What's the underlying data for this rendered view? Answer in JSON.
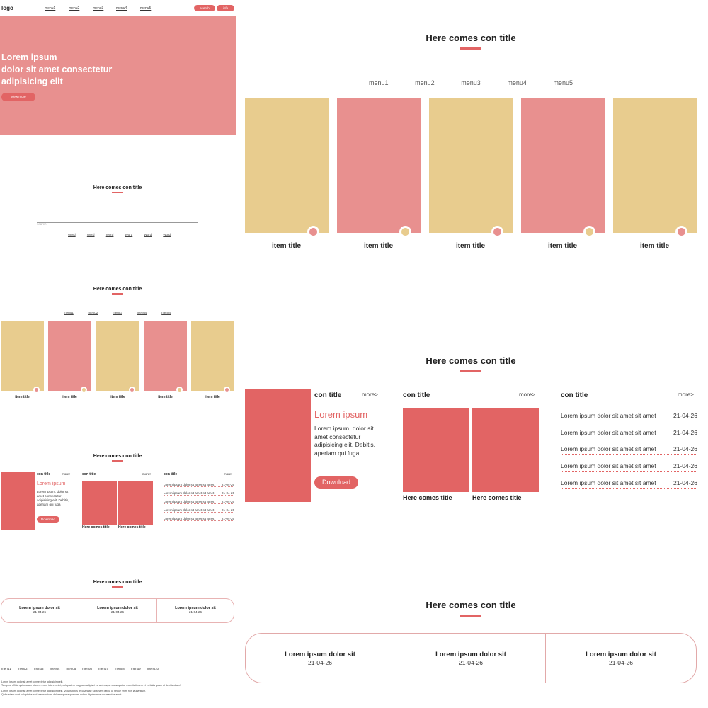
{
  "header": {
    "logo": "logo",
    "nav": [
      "menu1",
      "menu2",
      "menu3",
      "menu4",
      "menu5"
    ],
    "search_button": "search",
    "info_button": "info"
  },
  "hero": {
    "line1": "Lorem ipsum",
    "line2": "dolor sit amet consectetur",
    "line3": "adipisicing elit",
    "cta": "View more"
  },
  "search_section": {
    "title": "Here comes con title",
    "placeholder": "search",
    "links": [
      "Word",
      "Word",
      "Word",
      "Word",
      "Word",
      "Word"
    ]
  },
  "items_section": {
    "title": "Here comes con title",
    "menu": [
      "menu1",
      "menu2",
      "menu3",
      "menu4",
      "menu5"
    ],
    "items": [
      "item title",
      "item title",
      "item title",
      "item title",
      "item title"
    ]
  },
  "content_section": {
    "title": "Here comes con title",
    "col1": {
      "heading": "con title",
      "more": "more>",
      "lead": "Lorem ipsum",
      "text_lines": [
        "Lorem ipsum, dolor sit",
        "amet consectetur",
        "adipisicing elit. Debitis,",
        "aperiam qui fuga"
      ],
      "button": "Download"
    },
    "col2": {
      "heading": "con title",
      "more": "more>",
      "captions": [
        "Here comes title",
        "Here comes title"
      ]
    },
    "col3": {
      "heading": "con title",
      "more": "more>",
      "rows": [
        {
          "text": "Lorem ipsum dolor sit amet sit amet",
          "date": "21-04-26"
        },
        {
          "text": "Lorem ipsum dolor sit amet sit amet",
          "date": "21-04-26"
        },
        {
          "text": "Lorem ipsum dolor sit amet sit amet",
          "date": "21-04-26"
        },
        {
          "text": "Lorem ipsum dolor sit amet sit amet",
          "date": "21-04-26"
        },
        {
          "text": "Lorem ipsum dolor sit amet sit amet",
          "date": "21-04-26"
        }
      ]
    }
  },
  "news_section": {
    "title": "Here comes con title",
    "items": [
      {
        "title": "Lorem ipsum dolor sit",
        "date": "21-04-26"
      },
      {
        "title": "Lorem ipsum dolor sit",
        "date": "21-04-26"
      },
      {
        "title": "Lorem ipsum dolor sit",
        "date": "21-04-26"
      }
    ]
  },
  "footer": {
    "links": [
      "menu1",
      "menu2",
      "menu3",
      "menu4",
      "menu5",
      "menu6",
      "menu7",
      "menu8",
      "menu9",
      "menu10"
    ],
    "line1": "Lorem ipsum dolor sit amet consectetur adipisicing elit.",
    "line2": "Tempora officia quibusdam ut cum rerum iste eveniet, voluptatem magnam adipisci ea sed eaque consequatur exercitationem et veritatis quam ut debitis ullam!",
    "line3": "Lorem ipsum dolor sit amet consectetur adipisicing elit. Voluptatibus recusandae fuga nam officia ut neque enim non laudantium.",
    "line4": "Quibusdam sunt voluptates sed praesentium, doloremque asperiores dolore dignissimos recusandae amet."
  },
  "colors": {
    "pink": "#e8908f",
    "tan": "#e8cc8e",
    "red": "#e26464"
  }
}
